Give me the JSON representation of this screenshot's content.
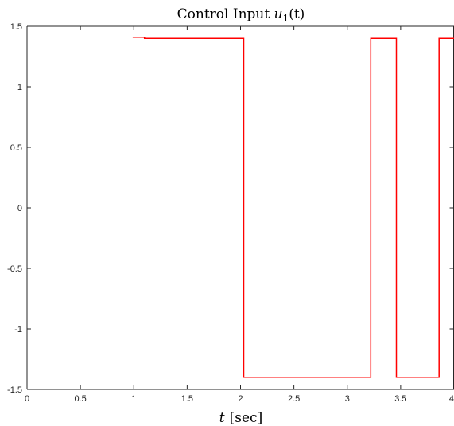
{
  "chart_data": {
    "type": "line",
    "title_prefix": "Control Input ",
    "title_math_var": "u",
    "title_math_sub": "1",
    "title_math_arg": "(t)",
    "xlabel_var": "t",
    "xlabel_unit": "[sec]",
    "ylabel": "",
    "xlim": [
      0,
      4
    ],
    "ylim": [
      -1.5,
      1.5
    ],
    "xticks": [
      0,
      0.5,
      1,
      1.5,
      2,
      2.5,
      3,
      3.5,
      4
    ],
    "xtick_labels": [
      "0",
      "0.5",
      "1",
      "1.5",
      "2",
      "2.5",
      "3",
      "3.5",
      "4"
    ],
    "yticks": [
      -1.5,
      -1,
      -0.5,
      0,
      0.5,
      1,
      1.5
    ],
    "ytick_labels": [
      "-1.5",
      "-1",
      "-0.5",
      "0",
      "0.5",
      "1",
      "1.5"
    ],
    "grid": false,
    "series": [
      {
        "color": "#ff0000",
        "x": [
          0.99,
          1.1,
          1.1,
          2.03,
          2.03,
          3.22,
          3.22,
          3.46,
          3.46,
          3.86,
          3.86,
          4.0
        ],
        "y": [
          1.41,
          1.41,
          1.4,
          1.4,
          -1.4,
          -1.4,
          1.4,
          1.4,
          -1.4,
          -1.4,
          1.4,
          1.4
        ]
      }
    ]
  }
}
